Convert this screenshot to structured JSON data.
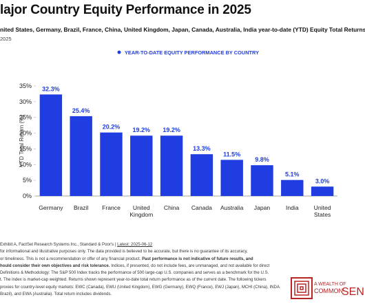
{
  "chart_data": {
    "type": "bar",
    "title": "lajor Country Equity Performance in 2025",
    "subtitle": "nited States, Germany, Brazil, France, China, United Kingdom, Japan, Canada, Australia, India year-to-date (YTD) Equity Total Returns",
    "date": "2025",
    "legend": "YEAR-TO-DATE EQUITY PERFORMANCE BY COUNTRY",
    "y_label": "YTD Total Return (%)",
    "categories": [
      "Germany",
      "Brazil",
      "France",
      "United Kingdom",
      "China",
      "Canada",
      "Australia",
      "Japan",
      "India",
      "United States"
    ],
    "values": [
      32.3,
      25.4,
      20.2,
      19.2,
      19.2,
      13.3,
      11.5,
      9.8,
      5.1,
      3.0
    ],
    "value_labels": [
      "32.3%",
      "25.4%",
      "20.2%",
      "19.2%",
      "19.2%",
      "13.3%",
      "11.5%",
      "9.8%",
      "5.1%",
      "3.0%"
    ],
    "color": "#1f3de0",
    "ylim": [
      0,
      35
    ],
    "yticks": [
      {
        "value": 0,
        "label": "0%"
      },
      {
        "value": 5,
        "label": "5%"
      },
      {
        "value": 10,
        "label": "10%"
      },
      {
        "value": 15,
        "label": "15%"
      },
      {
        "value": 20,
        "label": "20%"
      },
      {
        "value": 25,
        "label": "25%"
      },
      {
        "value": 30,
        "label": "30%"
      },
      {
        "value": 35,
        "label": "35%"
      }
    ],
    "grid": false
  },
  "footer": {
    "lines": [
      [
        {
          "text": "Exhibit A, FactSet Research Systems Inc., Standard & Poor's | ",
          "bold": false
        },
        {
          "text": "Latest: 2025-06-12",
          "bold": false,
          "underline": true
        }
      ],
      [
        {
          "text": "for informational and illustrative purposes only. The data provided is believed to be accurate, but there is no guarantee of its accuracy,",
          "bold": false
        }
      ],
      [
        {
          "text": "or timeliness. This is not a recommendation or offer of any financial product. ",
          "bold": false
        },
        {
          "text": "Past performance is not indicative of future results, and",
          "bold": true
        }
      ],
      [
        {
          "text": "hould consider their own objectives and risk tolerance.",
          "bold": true
        },
        {
          "text": " Indices, if presented, do not include fees, are unmanaged, and not available for direct",
          "bold": false
        }
      ],
      [
        {
          "text": "Definitions & Methodology: The S&P 500 Index tracks the performance of 500 large-cap U.S. companies and serves as a benchmark for the U.S.",
          "bold": false
        }
      ],
      [
        {
          "text": "t. The index is market-cap weighted. Returns shown represent year-to-date total return performance as of the current date. The following tickers",
          "bold": false
        }
      ],
      [
        {
          "text": "proxies for country-level equity markets: EWC (Canada), EWU (United Kingdom), EWG (Germany), EWQ (France), EWJ (Japan), MCHI (China), INDA",
          "bold": false
        }
      ],
      [
        {
          "text": "Brazil), and EWA (Australia). Total return includes dividends.",
          "bold": false
        }
      ]
    ]
  },
  "logo": {
    "line1": "A WEALTH OF",
    "line2": "COMMON",
    "line3": "SEN"
  }
}
